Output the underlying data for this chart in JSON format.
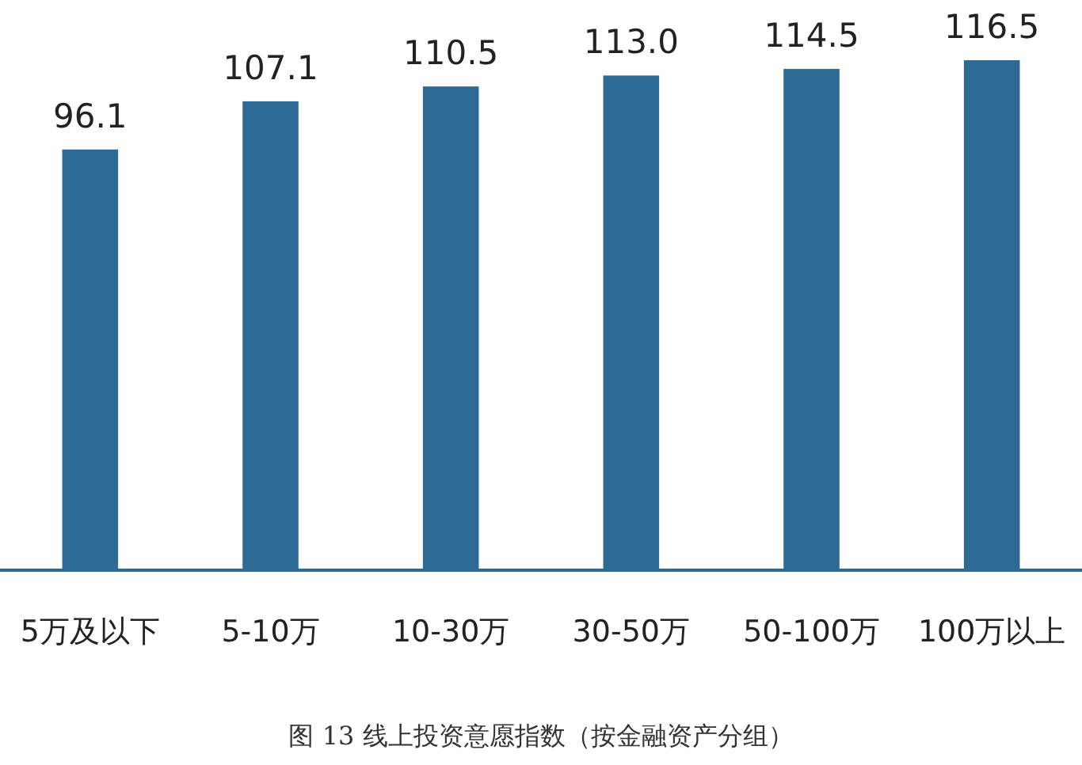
{
  "chart_data": {
    "type": "bar",
    "categories": [
      "5万及以下",
      "5-10万",
      "10-30万",
      "30-50万",
      "50-100万",
      "100万以上"
    ],
    "values": [
      96.1,
      107.1,
      110.5,
      113.0,
      114.5,
      116.5
    ],
    "value_labels": [
      "96.1",
      "107.1",
      "110.5",
      "113.0",
      "114.5",
      "116.5"
    ],
    "color": "#2e6a96",
    "annotations": [
      "图 13 线上投资意愿指数（按金融资产分组）"
    ]
  }
}
